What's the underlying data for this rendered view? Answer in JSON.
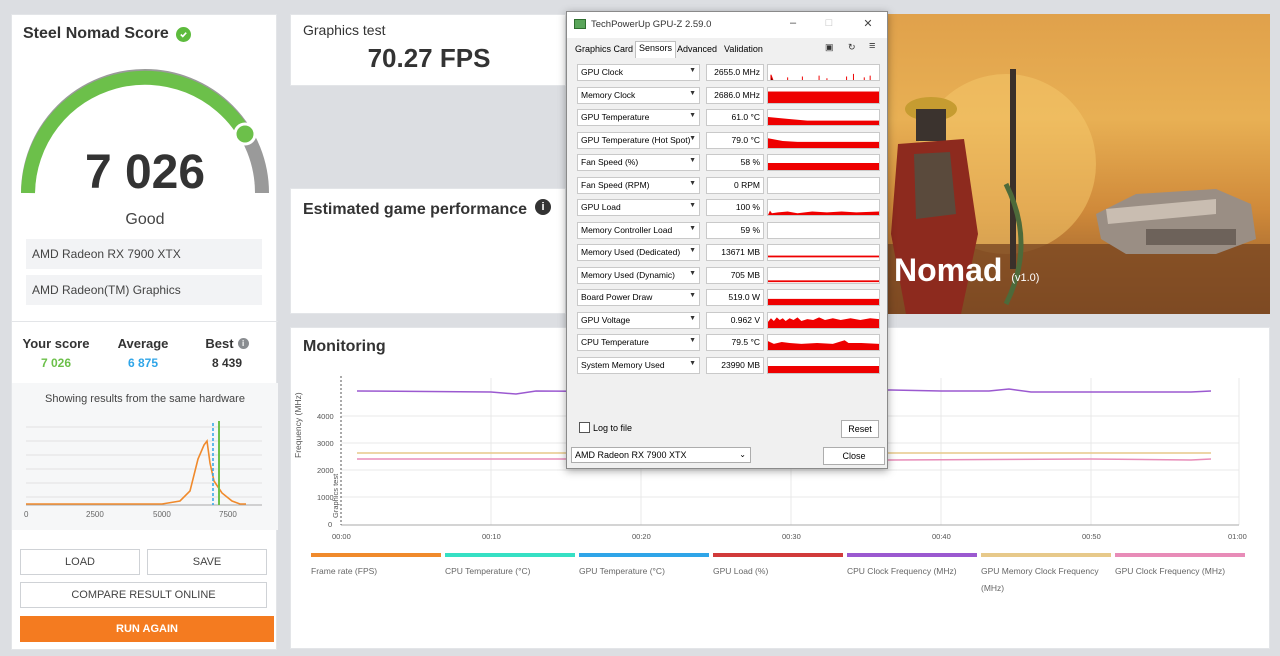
{
  "score_panel": {
    "title": "Steel Nomad Score",
    "score": "7 026",
    "rating": "Good",
    "gpu": "AMD Radeon RX 7900 XTX",
    "igpu": "AMD Radeon(TM) Graphics",
    "your_score_label": "Your score",
    "your_score": "7 026",
    "average_label": "Average",
    "average": "6 875",
    "best_label": "Best",
    "best": "8 439",
    "hist_title": "Showing results from the same hardware",
    "hist_ticks": [
      "0",
      "2500",
      "5000",
      "7500"
    ],
    "buttons": {
      "load": "LOAD",
      "save": "SAVE",
      "compare": "COMPARE RESULT ONLINE",
      "run_again": "RUN AGAIN"
    }
  },
  "graphics_test": {
    "title": "Graphics test",
    "fps": "70.27 FPS"
  },
  "estimated": {
    "title": "Estimated game performance",
    "info": "i"
  },
  "hero": {
    "title": "Nomad",
    "version": "(v1.0)"
  },
  "monitoring": {
    "title": "Monitoring",
    "y_label": "Frequency (MHz)",
    "y_label2": "Graphics test",
    "y_ticks": [
      "4000",
      "3000",
      "2000",
      "1000",
      "0"
    ],
    "x_ticks": [
      "00:00",
      "00:10",
      "00:20",
      "00:30",
      "00:40",
      "00:50",
      "01:00"
    ],
    "legend": [
      {
        "label": "Frame rate (FPS)",
        "color": "#f08a2c"
      },
      {
        "label": "CPU Temperature (°C)",
        "color": "#36e0c4"
      },
      {
        "label": "GPU Temperature (°C)",
        "color": "#2fa5e8"
      },
      {
        "label": "GPU Load (%)",
        "color": "#d13a3a"
      },
      {
        "label": "CPU Clock Frequency (MHz)",
        "color": "#9b59d0"
      },
      {
        "label": "GPU Memory Clock Frequency (MHz)",
        "color": "#e7c98a"
      },
      {
        "label": "GPU Clock Frequency (MHz)",
        "color": "#e88cb8"
      }
    ]
  },
  "gpuz": {
    "title": "TechPowerUp GPU-Z 2.59.0",
    "tabs": [
      "Graphics Card",
      "Sensors",
      "Advanced",
      "Validation"
    ],
    "sensors": [
      {
        "name": "GPU Clock",
        "value": "2655.0 MHz"
      },
      {
        "name": "Memory Clock",
        "value": "2686.0 MHz"
      },
      {
        "name": "GPU Temperature",
        "value": "61.0 °C"
      },
      {
        "name": "GPU Temperature (Hot Spot)",
        "value": "79.0 °C"
      },
      {
        "name": "Fan Speed (%)",
        "value": "58 %"
      },
      {
        "name": "Fan Speed (RPM)",
        "value": "0 RPM"
      },
      {
        "name": "GPU Load",
        "value": "100 %"
      },
      {
        "name": "Memory Controller Load",
        "value": "59 %"
      },
      {
        "name": "Memory Used (Dedicated)",
        "value": "13671 MB"
      },
      {
        "name": "Memory Used (Dynamic)",
        "value": "705 MB"
      },
      {
        "name": "Board Power Draw",
        "value": "519.0 W"
      },
      {
        "name": "GPU Voltage",
        "value": "0.962 V"
      },
      {
        "name": "CPU Temperature",
        "value": "79.5 °C"
      },
      {
        "name": "System Memory Used",
        "value": "23990 MB"
      }
    ],
    "log_to_file": "Log to file",
    "reset": "Reset",
    "device": "AMD Radeon RX 7900 XTX",
    "close": "Close"
  }
}
